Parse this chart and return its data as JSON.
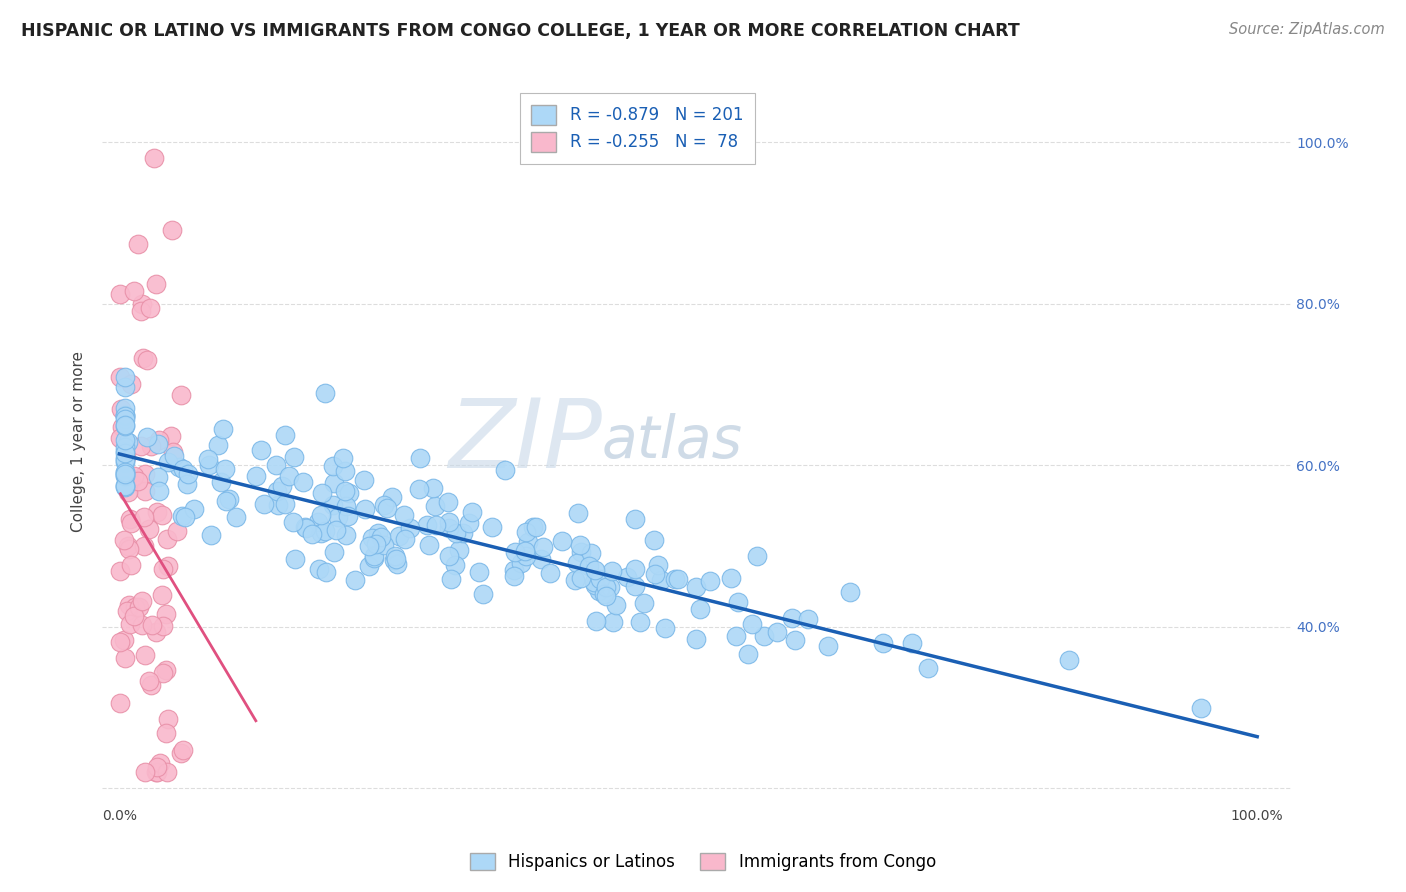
{
  "title": "HISPANIC OR LATINO VS IMMIGRANTS FROM CONGO COLLEGE, 1 YEAR OR MORE CORRELATION CHART",
  "source": "Source: ZipAtlas.com",
  "ylabel": "College, 1 year or more",
  "watermark_zip": "ZIP",
  "watermark_atlas": "atlas",
  "legend_r1": "R = -0.879",
  "legend_n1": "N = 201",
  "legend_r2": "R = -0.255",
  "legend_n2": "N =  78",
  "blue_color": "#ADD8F7",
  "blue_edge": "#7BB8E8",
  "pink_color": "#F9B8CC",
  "pink_edge": "#E890A8",
  "blue_line_color": "#1A5FB4",
  "pink_line_color": "#E05080",
  "background_color": "#FFFFFF",
  "grid_color": "#DDDDDD",
  "seed": 42,
  "n_blue": 201,
  "n_pink": 78,
  "r_blue": -0.879,
  "r_pink": -0.255,
  "title_fontsize": 12.5,
  "source_fontsize": 10.5,
  "label_fontsize": 11,
  "tick_fontsize": 10,
  "legend_fontsize": 12
}
